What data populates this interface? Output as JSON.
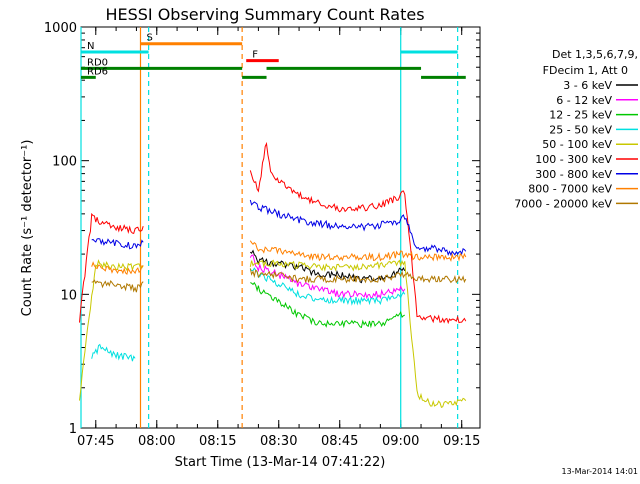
{
  "chart_data": {
    "type": "line",
    "title": "HESSI Observing Summary Count Rates",
    "xlabel": "Start Time (13-Mar-14 07:41:22)",
    "ylabel": "Count Rate (s⁻¹ detector⁻¹)",
    "yscale": "log",
    "ylim": [
      1,
      1000
    ],
    "xlim": [
      "07:41:22",
      "09:19:30"
    ],
    "x_ticks": [
      "07:45",
      "08:00",
      "08:15",
      "08:30",
      "08:45",
      "09:00",
      "09:15"
    ],
    "y_ticks": [
      "1",
      "10",
      "100",
      "1000"
    ],
    "footer_timestamp": "13-Mar-2014 14:01",
    "legend": {
      "placement": "right",
      "header_lines": [
        "Det 1,3,5,6,7,9,",
        "FDecim 1, Att 0"
      ]
    },
    "series": [
      {
        "name": "3 - 6 keV",
        "color": "#000000",
        "x": [
          "08:23",
          "08:25",
          "08:30",
          "08:35",
          "08:40",
          "08:45",
          "08:50",
          "08:55",
          "09:00",
          "09:01"
        ],
        "values": [
          22,
          18,
          17,
          16,
          14,
          14,
          13,
          13,
          15,
          15
        ]
      },
      {
        "name": "6 - 12 keV",
        "color": "#ff00ff",
        "x": [
          "08:23",
          "08:25",
          "08:30",
          "08:35",
          "08:40",
          "08:45",
          "08:50",
          "08:55",
          "09:00",
          "09:01"
        ],
        "values": [
          20,
          16,
          14,
          12,
          11,
          10,
          10,
          10,
          11,
          11
        ]
      },
      {
        "name": "12 - 25 keV",
        "color": "#00c800",
        "x": [
          "08:23",
          "08:25",
          "08:30",
          "08:35",
          "08:40",
          "08:45",
          "08:50",
          "08:55",
          "09:00",
          "09:01"
        ],
        "values": [
          13,
          11,
          9,
          7,
          6,
          6,
          6,
          6,
          7,
          7
        ]
      },
      {
        "name": "25 - 50 keV",
        "color": "#00e0e0",
        "x": [
          "07:44",
          "07:46",
          "07:50",
          "07:55",
          "08:23",
          "08:25",
          "08:30",
          "08:35",
          "08:40",
          "08:45",
          "08:50",
          "08:55",
          "09:00",
          "09:01"
        ],
        "values": [
          3.5,
          4,
          3.5,
          3.3,
          16,
          14,
          12,
          10,
          9,
          9,
          9,
          9,
          10,
          10
        ]
      },
      {
        "name": "50 - 100 keV",
        "color": "#c8c800",
        "x": [
          "07:41",
          "07:45",
          "07:50",
          "07:55",
          "07:57",
          "08:23",
          "08:30",
          "08:40",
          "08:50",
          "09:00",
          "09:01",
          "09:04",
          "09:08",
          "09:12",
          "09:16"
        ],
        "values": [
          1.7,
          17,
          16,
          16,
          17,
          17,
          17,
          16,
          16,
          17,
          17,
          1.8,
          1.5,
          1.5,
          1.6
        ]
      },
      {
        "name": "100 - 300 keV",
        "color": "#ff0000",
        "x": [
          "07:41",
          "07:44",
          "07:46",
          "07:50",
          "07:55",
          "07:57",
          "08:23",
          "08:25",
          "08:27",
          "08:28",
          "08:30",
          "08:35",
          "08:40",
          "08:45",
          "08:50",
          "08:55",
          "09:00",
          "09:01",
          "09:04",
          "09:08",
          "09:12",
          "09:16"
        ],
        "values": [
          6.5,
          38,
          35,
          32,
          30,
          32,
          85,
          60,
          140,
          80,
          70,
          55,
          48,
          44,
          44,
          46,
          55,
          58,
          7,
          6.5,
          6.5,
          6.3
        ]
      },
      {
        "name": "300 - 800 keV",
        "color": "#0000e6",
        "x": [
          "07:44",
          "07:46",
          "07:50",
          "07:55",
          "07:57",
          "08:23",
          "08:25",
          "08:30",
          "08:35",
          "08:40",
          "08:45",
          "08:50",
          "08:55",
          "09:00",
          "09:01",
          "09:04",
          "09:08",
          "09:12",
          "09:16"
        ],
        "values": [
          27,
          25,
          24,
          23,
          25,
          48,
          45,
          40,
          36,
          34,
          32,
          32,
          33,
          36,
          38,
          22,
          22,
          21,
          21
        ]
      },
      {
        "name": "800 - 7000 keV",
        "color": "#ff8000",
        "x": [
          "07:44",
          "07:46",
          "07:50",
          "07:55",
          "07:57",
          "08:23",
          "08:25",
          "08:30",
          "08:35",
          "08:40",
          "08:45",
          "08:50",
          "08:55",
          "09:00",
          "09:01",
          "09:04",
          "09:08",
          "09:12",
          "09:16"
        ],
        "values": [
          17,
          16,
          15,
          15,
          16,
          24,
          22,
          21,
          20,
          19,
          19,
          19,
          19,
          20,
          20,
          19,
          19,
          19,
          19
        ]
      },
      {
        "name": "7000 - 20000 keV",
        "color": "#b07800",
        "x": [
          "07:44",
          "07:46",
          "07:50",
          "07:55",
          "07:57",
          "08:23",
          "08:25",
          "08:30",
          "08:35",
          "08:40",
          "08:45",
          "08:50",
          "08:55",
          "09:00",
          "09:01",
          "09:04",
          "09:08",
          "09:12",
          "09:16"
        ],
        "values": [
          13,
          12,
          12,
          11,
          12,
          15,
          14,
          14,
          13,
          13,
          13,
          13,
          13,
          14,
          14,
          13,
          13,
          13,
          13
        ]
      }
    ],
    "vertical_markers": [
      {
        "time": "07:41:22",
        "color": "#00e0e0",
        "style": "solid"
      },
      {
        "time": "07:56",
        "color": "#ff8000",
        "style": "solid"
      },
      {
        "time": "07:58",
        "color": "#00e0e0",
        "style": "dashed"
      },
      {
        "time": "08:21",
        "color": "#ff8000",
        "style": "dashed"
      },
      {
        "time": "09:00",
        "color": "#00e0e0",
        "style": "solid"
      },
      {
        "time": "09:14",
        "color": "#00e0e0",
        "style": "dashed"
      }
    ],
    "flag_bars": [
      {
        "label": "S",
        "color": "#ff8000",
        "start": "07:56",
        "end": "08:21",
        "level": 750
      },
      {
        "label": "N",
        "color": "#00e0e0",
        "start": "07:41:22",
        "end": "07:58",
        "level": 650
      },
      {
        "label": "",
        "color": "#00e0e0",
        "start": "09:00",
        "end": "09:14",
        "level": 650
      },
      {
        "label": "F",
        "color": "#ff0000",
        "start": "08:22",
        "end": "08:30",
        "level": 560
      },
      {
        "label": "RD0",
        "color": "#008000",
        "start": "07:41:22",
        "end": "08:21",
        "level": 490
      },
      {
        "label": "",
        "color": "#008000",
        "start": "08:21",
        "end": "08:27",
        "level": 420
      },
      {
        "label": "",
        "color": "#008000",
        "start": "08:27",
        "end": "09:05",
        "level": 490
      },
      {
        "label": "",
        "color": "#008000",
        "start": "09:05",
        "end": "09:16",
        "level": 420
      },
      {
        "label": "RD6",
        "color": "#008000",
        "start": "07:41:22",
        "end": "07:45",
        "level": 420
      }
    ]
  }
}
